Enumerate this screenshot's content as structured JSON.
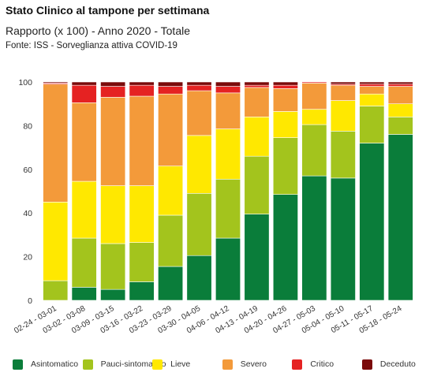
{
  "header": {
    "title": "Stato Clinico al tampone per settimana",
    "subtitle": "Rapporto (x 100) - Anno 2020 - Totale",
    "source": "Fonte: ISS - Sorveglianza attiva COVID-19"
  },
  "chart_data": {
    "type": "bar",
    "stacked": true,
    "categories": [
      "02-24 - 03-01",
      "03-02 - 03-08",
      "03-09 - 03-15",
      "03-16 - 03-22",
      "03-23 - 03-29",
      "03-30 - 04-05",
      "04-06 - 04-12",
      "04-13 - 04-19",
      "04-20 - 04-26",
      "04-27 - 05-03",
      "05-04 - 05-10",
      "05-11 - 05-17",
      "05-18 - 05-24"
    ],
    "series": [
      {
        "name": "Asintomatico",
        "color": "#0a7d3a",
        "values": [
          0,
          6,
          5,
          8.5,
          15.5,
          20.5,
          28.5,
          39.5,
          48.5,
          57,
          56,
          72,
          76
        ]
      },
      {
        "name": "Pauci-sintomatico",
        "color": "#a3c41d",
        "values": [
          9,
          22.5,
          21,
          18,
          23.5,
          28.5,
          27,
          26.5,
          26,
          23.5,
          21.5,
          17,
          8
        ]
      },
      {
        "name": "Lieve",
        "color": "#ffe800",
        "values": [
          36,
          26,
          26.5,
          26,
          22.5,
          26.5,
          23,
          18,
          12,
          7,
          14,
          5.5,
          6
        ]
      },
      {
        "name": "Severo",
        "color": "#f39a3a",
        "values": [
          54,
          36,
          40.5,
          41,
          33,
          20.5,
          16.5,
          13.5,
          10.5,
          12,
          7,
          3.5,
          8
        ]
      },
      {
        "name": "Critico",
        "color": "#e52222",
        "values": [
          0.5,
          8,
          5,
          5,
          3.5,
          2.5,
          3,
          1,
          1.5,
          0.5,
          0.5,
          1,
          1
        ]
      },
      {
        "name": "Deceduto",
        "color": "#7b0a0a",
        "values": [
          0.5,
          1.5,
          2,
          1.5,
          2,
          1.5,
          2,
          1.5,
          1.5,
          0,
          1,
          1,
          1
        ]
      }
    ],
    "ylim": [
      0,
      100
    ],
    "yticks": [
      0,
      20,
      40,
      60,
      80,
      100
    ],
    "xlabel": "",
    "ylabel": "",
    "grid": false,
    "legend_position": "bottom"
  }
}
